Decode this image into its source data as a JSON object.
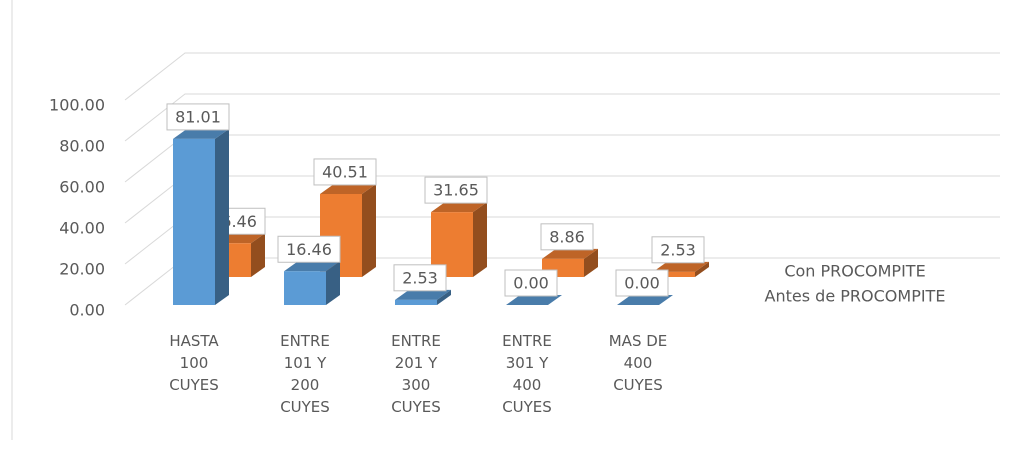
{
  "chart_data": {
    "type": "bar3d",
    "categories": [
      "HASTA 100 CUYES",
      "ENTRE 101 Y 200 CUYES",
      "ENTRE 201 Y 300 CUYES",
      "ENTRE 301 Y 400 CUYES",
      "MAS DE 400 CUYES"
    ],
    "series": [
      {
        "name": "Con PROCOMPITE",
        "color": "#ed7d31",
        "values": [
          16.46,
          40.51,
          31.65,
          8.86,
          2.53
        ],
        "value_labels": [
          "16.46",
          "40.51",
          "31.65",
          "8.86",
          "2.53"
        ]
      },
      {
        "name": "Antes de PROCOMPITE",
        "color": "#5b9bd5",
        "values": [
          81.01,
          16.46,
          2.53,
          0,
          0
        ],
        "value_labels": [
          "81.01",
          "16.46",
          "2.53",
          "0.00",
          "0.00"
        ]
      }
    ],
    "ylim": [
      0,
      100
    ],
    "yticks": [
      {
        "value": 0,
        "label": "0.00"
      },
      {
        "value": 20,
        "label": "20.00"
      },
      {
        "value": 40,
        "label": "40.00"
      },
      {
        "value": 60,
        "label": "60.00"
      },
      {
        "value": 80,
        "label": "80.00"
      },
      {
        "value": 100,
        "label": "100.00"
      }
    ],
    "grid": true
  }
}
